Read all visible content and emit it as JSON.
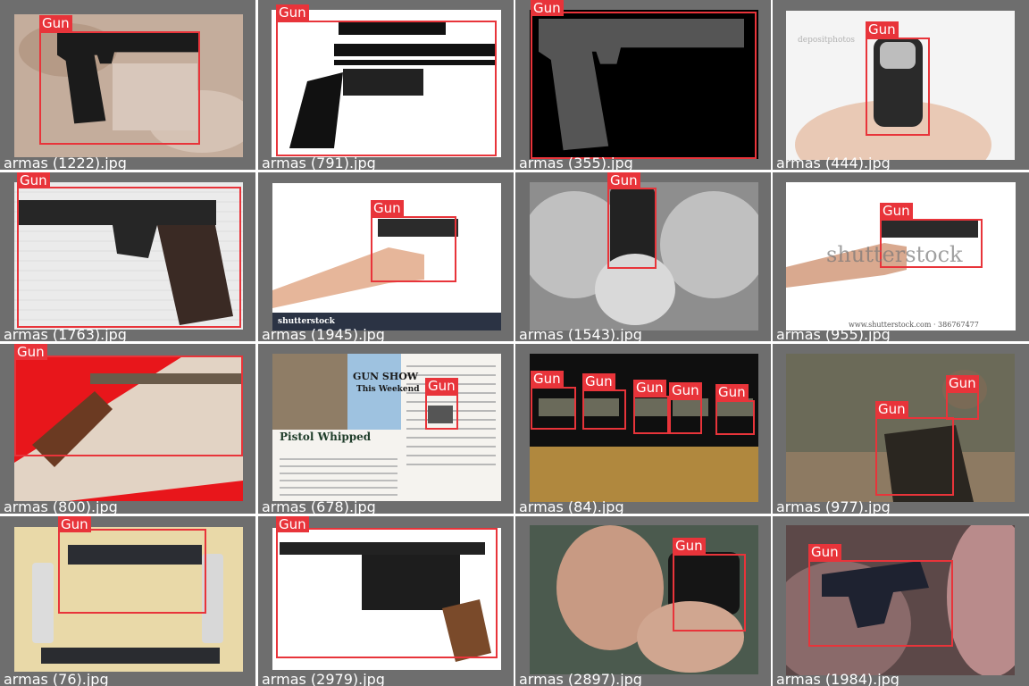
{
  "grid": {
    "tiles": [
      {
        "filename": "armas (1222).jpg",
        "scene": "gun-on-camo",
        "bg": "#c9b3a3",
        "boxes": [
          {
            "label": "Gun"
          }
        ]
      },
      {
        "filename": "armas (791).jpg",
        "scene": "revolver-sketch",
        "bg": "#ffffff",
        "boxes": [
          {
            "label": "Gun"
          }
        ]
      },
      {
        "filename": "armas (355).jpg",
        "scene": "beretta-black",
        "bg": "#000000",
        "boxes": [
          {
            "label": "Gun"
          }
        ]
      },
      {
        "filename": "armas (444).jpg",
        "scene": "hand-gun-front",
        "bg": "#f4f4f4",
        "boxes": [
          {
            "label": "Gun"
          }
        ]
      },
      {
        "filename": "armas (1763).jpg",
        "scene": "colt-on-towel",
        "bg": "#eeeeee",
        "boxes": [
          {
            "label": "Gun"
          }
        ]
      },
      {
        "filename": "armas (1945).jpg",
        "scene": "arm-pistol-stock",
        "bg": "#ffffff",
        "boxes": [
          {
            "label": "Gun"
          }
        ]
      },
      {
        "filename": "armas (1543).jpg",
        "scene": "woman-aim-bw",
        "bg": "#9a9a9a",
        "boxes": [
          {
            "label": "Gun"
          }
        ]
      },
      {
        "filename": "armas (955).jpg",
        "scene": "arm-pistol-shutter",
        "bg": "#ffffff",
        "boxes": [
          {
            "label": "Gun"
          }
        ]
      },
      {
        "filename": "armas (800).jpg",
        "scene": "revolver-red",
        "bg": "#e8161b",
        "boxes": [
          {
            "label": "Gun"
          }
        ]
      },
      {
        "filename": "armas (678).jpg",
        "scene": "magazine-spread",
        "bg": "#f5f3ef",
        "boxes": [
          {
            "label": "Gun"
          }
        ]
      },
      {
        "filename": "armas (84).jpg",
        "scene": "five-guns-counter",
        "bg": "#111111",
        "boxes": [
          {
            "label": "Gun"
          },
          {
            "label": "Gun"
          },
          {
            "label": "Gun"
          },
          {
            "label": "Gun"
          },
          {
            "label": "Gun"
          }
        ]
      },
      {
        "filename": "armas (977).jpg",
        "scene": "game-fps",
        "bg": "#6b6a58",
        "boxes": [
          {
            "label": "Gun"
          },
          {
            "label": "Gun"
          }
        ]
      },
      {
        "filename": "armas (76).jpg",
        "scene": "disassembled",
        "bg": "#e9d9a8",
        "boxes": [
          {
            "label": "Gun"
          }
        ]
      },
      {
        "filename": "armas (2979).jpg",
        "scene": "mauser-white",
        "bg": "#ffffff",
        "boxes": [
          {
            "label": "Gun"
          }
        ]
      },
      {
        "filename": "armas (2897).jpg",
        "scene": "man-aiming",
        "bg": "#4b5a4e",
        "boxes": [
          {
            "label": "Gun"
          }
        ]
      },
      {
        "filename": "armas (1984).jpg",
        "scene": "gun-on-fabric",
        "bg": "#5c4848",
        "boxes": [
          {
            "label": "Gun"
          }
        ]
      }
    ]
  },
  "magazine": {
    "headline": "Pistol Whipped",
    "sign_title": "GUN SHOW",
    "sign_sub": "This Weekend"
  },
  "watermarks": {
    "shutterstock": "shutterstock",
    "shutterstock_url": "www.shutterstock.com · 386767477",
    "depositphotos": "depositphotos"
  },
  "colors": {
    "box": "#e8343a",
    "tile_frame": "#6e6e6e"
  }
}
